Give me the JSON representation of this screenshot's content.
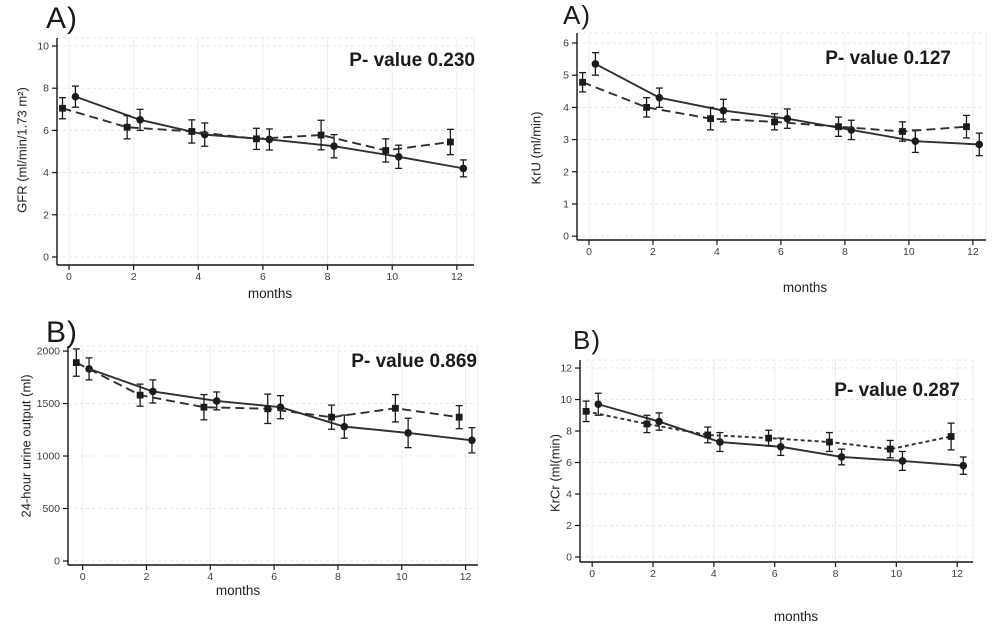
{
  "figure": {
    "background": "#ffffff"
  },
  "palette": {
    "line": "#2f2f2f",
    "marker": "#1b1b1b",
    "axis": "#151515",
    "grid_v": "#ededed",
    "grid_h": "#e7e7e7",
    "tick_text": "#3d3d3d"
  },
  "chart_data": [
    {
      "panel_label": "A)",
      "annotation": "P- value 0.230",
      "type": "line",
      "xlabel": "months",
      "ylabel": "GFR (ml/min/1.73 m²)",
      "x_ticks": [
        0,
        2,
        4,
        6,
        8,
        10,
        12
      ],
      "y_ticks": [
        0,
        2,
        4,
        6,
        8,
        10
      ],
      "xlim": [
        -0.37,
        12.53
      ],
      "ylim": [
        -0.38,
        10.38
      ],
      "grid": true,
      "series": [
        {
          "name": "solid circles",
          "line_style": "solid",
          "marker": "circle",
          "x": [
            0.2,
            2.2,
            4.2,
            6.2,
            8.2,
            10.2,
            12.2
          ],
          "y": [
            7.6,
            6.5,
            5.8,
            5.57,
            5.25,
            4.75,
            4.2
          ],
          "err": [
            0.5,
            0.5,
            0.55,
            0.5,
            0.55,
            0.55,
            0.4
          ]
        },
        {
          "name": "dashed squares",
          "line_style": "long-dash",
          "marker": "square",
          "x": [
            -0.2,
            1.8,
            3.8,
            5.8,
            7.8,
            9.8,
            11.8
          ],
          "y": [
            7.05,
            6.15,
            5.95,
            5.6,
            5.78,
            5.05,
            5.45
          ],
          "err": [
            0.5,
            0.55,
            0.55,
            0.5,
            0.7,
            0.55,
            0.6
          ]
        }
      ]
    },
    {
      "panel_label": "A)",
      "annotation": "P- value 0.127",
      "type": "line",
      "xlabel": "months",
      "ylabel": "KrU (ml/min)",
      "x_ticks": [
        0,
        2,
        4,
        6,
        8,
        10,
        12
      ],
      "y_ticks": [
        0,
        1,
        2,
        3,
        4,
        5,
        6
      ],
      "xlim": [
        -0.375,
        12.41
      ],
      "ylim": [
        -0.12,
        6.31
      ],
      "grid": true,
      "series": [
        {
          "name": "solid circles",
          "line_style": "solid",
          "marker": "circle",
          "x": [
            0.2,
            2.2,
            4.2,
            6.2,
            8.2,
            10.2,
            12.2
          ],
          "y": [
            5.35,
            4.3,
            3.9,
            3.65,
            3.3,
            2.95,
            2.85
          ],
          "err": [
            0.35,
            0.3,
            0.35,
            0.3,
            0.3,
            0.35,
            0.35
          ]
        },
        {
          "name": "dashed squares",
          "line_style": "long-dash",
          "marker": "square",
          "x": [
            -0.2,
            1.8,
            3.8,
            5.8,
            7.8,
            9.8,
            11.8
          ],
          "y": [
            4.78,
            4.0,
            3.65,
            3.55,
            3.4,
            3.25,
            3.4
          ],
          "err": [
            0.3,
            0.3,
            0.35,
            0.25,
            0.3,
            0.3,
            0.35
          ]
        }
      ]
    },
    {
      "panel_label": "B)",
      "annotation": "P- value 0.869",
      "type": "line",
      "xlabel": "months",
      "ylabel": "24-hour urine output (ml)",
      "x_ticks": [
        0,
        2,
        4,
        6,
        8,
        10,
        12
      ],
      "y_ticks": [
        0,
        500,
        1000,
        1500,
        2000
      ],
      "xlim": [
        -0.46,
        12.39
      ],
      "ylim": [
        -38,
        2048
      ],
      "grid": true,
      "series": [
        {
          "name": "solid circles",
          "line_style": "solid",
          "marker": "circle",
          "x": [
            0.2,
            2.2,
            4.2,
            6.2,
            8.2,
            10.2,
            12.2
          ],
          "y": [
            1830,
            1615,
            1525,
            1465,
            1280,
            1220,
            1150
          ],
          "err": [
            105,
            110,
            85,
            110,
            110,
            140,
            120
          ]
        },
        {
          "name": "dashed squares",
          "line_style": "long-dash",
          "marker": "square",
          "x": [
            -0.2,
            1.8,
            3.8,
            5.8,
            7.8,
            9.8,
            11.8
          ],
          "y": [
            1890,
            1580,
            1465,
            1450,
            1370,
            1455,
            1370
          ],
          "err": [
            130,
            105,
            120,
            140,
            115,
            130,
            110
          ]
        }
      ]
    },
    {
      "panel_label": "B)",
      "annotation": "P- value 0.287",
      "type": "line",
      "xlabel": "months",
      "ylabel": "KrCr (ml(min)",
      "x_ticks": [
        0,
        2,
        4,
        6,
        8,
        10,
        12
      ],
      "y_ticks": [
        0,
        2,
        4,
        6,
        8,
        10,
        12
      ],
      "xlim": [
        -0.4,
        12.52
      ],
      "ylim": [
        -0.32,
        12.51
      ],
      "grid": true,
      "series": [
        {
          "name": "solid circles",
          "line_style": "solid",
          "marker": "circle",
          "x": [
            0.2,
            2.2,
            4.2,
            6.2,
            8.2,
            10.2,
            12.2
          ],
          "y": [
            9.7,
            8.6,
            7.3,
            7.0,
            6.35,
            6.1,
            5.8
          ],
          "err": [
            0.7,
            0.55,
            0.6,
            0.55,
            0.5,
            0.6,
            0.55
          ]
        },
        {
          "name": "dashed squares",
          "line_style": "short-dash",
          "marker": "square",
          "x": [
            -0.2,
            1.8,
            3.8,
            5.8,
            7.8,
            9.8,
            11.8
          ],
          "y": [
            9.25,
            8.45,
            7.75,
            7.55,
            7.3,
            6.85,
            7.65
          ],
          "err": [
            0.65,
            0.55,
            0.5,
            0.5,
            0.6,
            0.55,
            0.85
          ]
        }
      ]
    }
  ]
}
